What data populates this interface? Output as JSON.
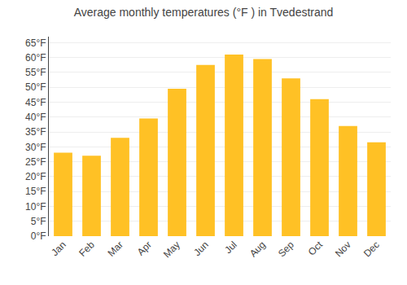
{
  "chart_data": {
    "type": "bar",
    "title": "Average monthly temperatures (°F ) in Tvedestrand",
    "categories": [
      "Jan",
      "Feb",
      "Mar",
      "Apr",
      "May",
      "Jun",
      "Jul",
      "Aug",
      "Sep",
      "Oct",
      "Nov",
      "Dec"
    ],
    "values": [
      28,
      27,
      33,
      39.5,
      49.5,
      57.5,
      61,
      59.5,
      53,
      46,
      37,
      31.5
    ],
    "color": "#FFC125",
    "ylim": [
      0,
      67
    ],
    "yticks": [
      {
        "value": 0,
        "label": "0°F"
      },
      {
        "value": 5,
        "label": "5°F"
      },
      {
        "value": 10,
        "label": "10°F"
      },
      {
        "value": 15,
        "label": "15°F"
      },
      {
        "value": 20,
        "label": "20°F"
      },
      {
        "value": 25,
        "label": "25°F"
      },
      {
        "value": 30,
        "label": "30°F"
      },
      {
        "value": 35,
        "label": "35°F"
      },
      {
        "value": 40,
        "label": "40°F"
      },
      {
        "value": 45,
        "label": "45°F"
      },
      {
        "value": 50,
        "label": "50°F"
      },
      {
        "value": 55,
        "label": "55°F"
      },
      {
        "value": 60,
        "label": "60°F"
      },
      {
        "value": 65,
        "label": "65°F"
      }
    ],
    "grid": true
  }
}
